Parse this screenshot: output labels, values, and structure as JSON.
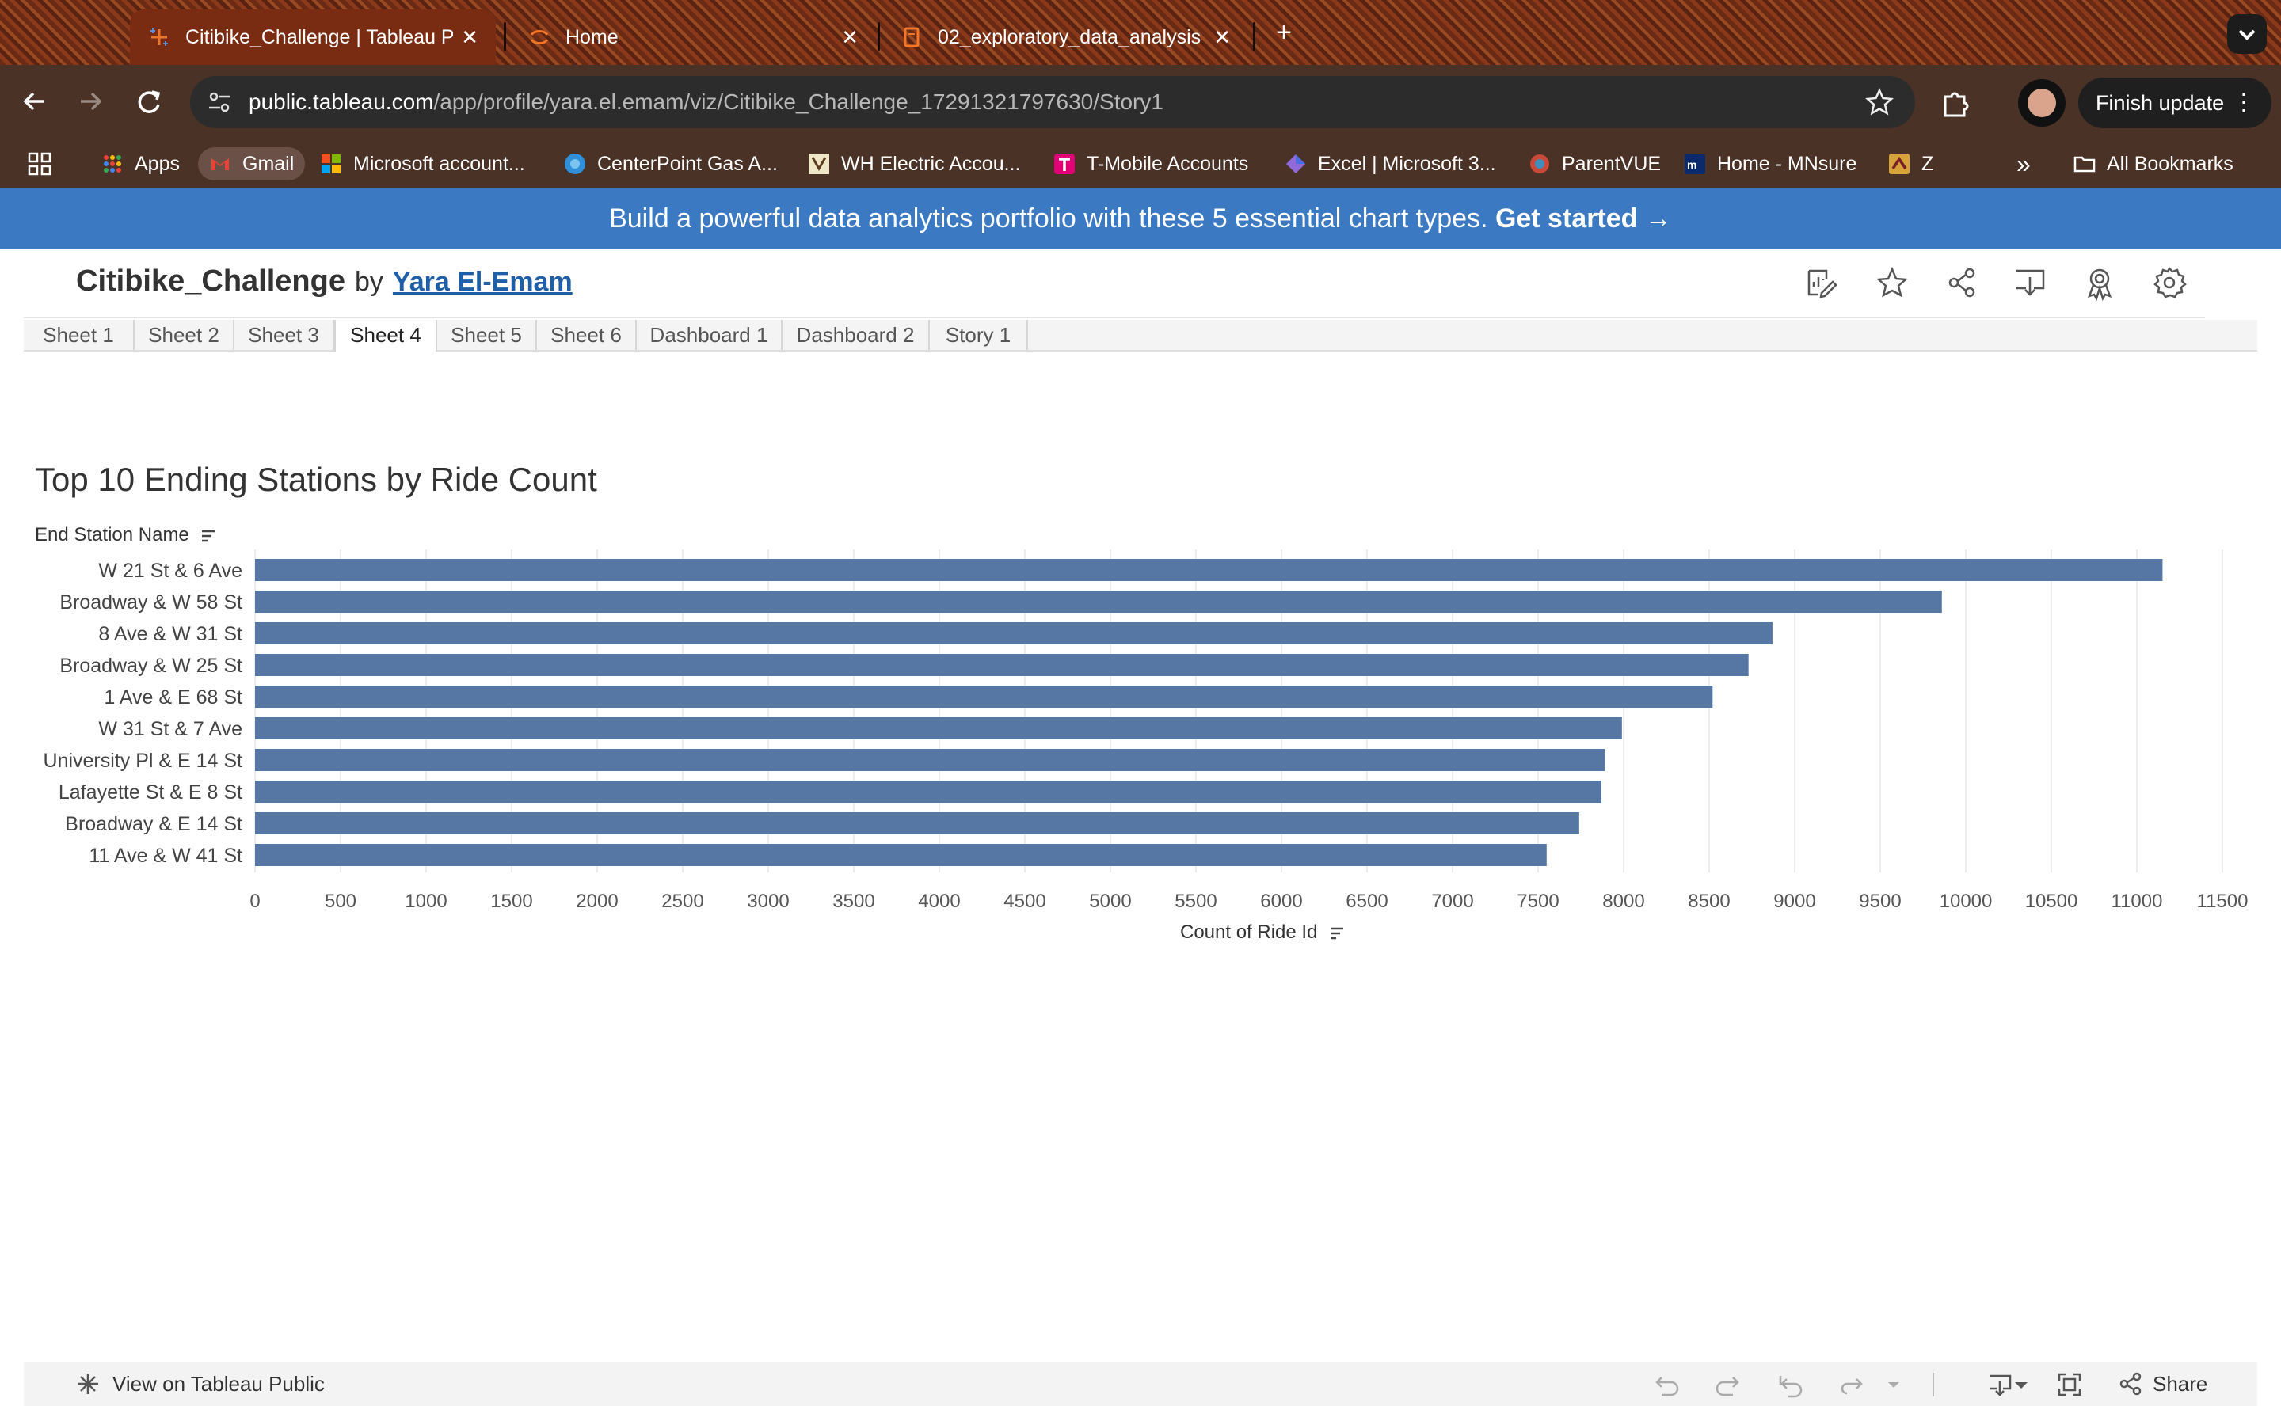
{
  "browser": {
    "tabs": [
      {
        "title": "Citibike_Challenge | Tableau P",
        "active": true,
        "favicon": "tableau-icon"
      },
      {
        "title": "Home",
        "active": false,
        "favicon": "jupyter-icon"
      },
      {
        "title": "02_exploratory_data_analysis",
        "active": false,
        "favicon": "notebook-icon"
      }
    ],
    "new_tab_symbol": "+",
    "url_domain": "public.tableau.com",
    "url_path": "/app/profile/yara.el.emam/viz/Citibike_Challenge_17291321797630/Story1",
    "finish_update_label": "Finish update",
    "bookmarks": [
      {
        "label": "Apps",
        "icon": "apps-grid-icon"
      },
      {
        "label": "Gmail",
        "icon": "gmail-icon"
      },
      {
        "label": "Microsoft account...",
        "icon": "microsoft-icon"
      },
      {
        "label": "CenterPoint Gas A...",
        "icon": "centerpoint-icon"
      },
      {
        "label": "WH Electric Accou...",
        "icon": "wh-electric-icon"
      },
      {
        "label": "T-Mobile Accounts",
        "icon": "tmobile-icon"
      },
      {
        "label": "Excel | Microsoft 3...",
        "icon": "excel-icon"
      },
      {
        "label": "ParentVUE",
        "icon": "parentvue-icon"
      },
      {
        "label": "Home - MNsure",
        "icon": "mnsure-icon"
      },
      {
        "label": "Z",
        "icon": "z-icon"
      }
    ],
    "more_bookmarks_symbol": "»",
    "all_bookmarks_label": "All Bookmarks"
  },
  "promo": {
    "text": "Build a powerful data analytics portfolio with these 5 essential chart types. ",
    "cta": "Get started →"
  },
  "viz": {
    "title": "Citibike_Challenge",
    "by": "by",
    "author": "Yara El-Emam",
    "sheet_tabs": [
      "Sheet 1",
      "Sheet 2",
      "Sheet 3",
      "Sheet 4",
      "Sheet 5",
      "Sheet 6",
      "Dashboard 1",
      "Dashboard 2",
      "Story 1"
    ],
    "active_sheet": "Sheet 4"
  },
  "chart_data": {
    "type": "bar",
    "orientation": "horizontal",
    "title": "Top 10 Ending Stations by Ride Count",
    "ylabel": "End Station Name",
    "xlabel": "Count of Ride Id",
    "categories": [
      "W 21 St & 6 Ave",
      "Broadway & W 58 St",
      "8 Ave & W 31 St",
      "Broadway & W 25 St",
      "1 Ave & E 68 St",
      "W 31 St & 7 Ave",
      "University Pl & E 14 St",
      "Lafayette St & E 8 St",
      "Broadway & E 14 St",
      "11 Ave & W 41 St"
    ],
    "values": [
      11150,
      9860,
      8870,
      8730,
      8520,
      7990,
      7890,
      7870,
      7740,
      7550
    ],
    "xlim": [
      0,
      11500
    ],
    "xticks": [
      0,
      500,
      1000,
      1500,
      2000,
      2500,
      3000,
      3500,
      4000,
      4500,
      5000,
      5500,
      6000,
      6500,
      7000,
      7500,
      8000,
      8500,
      9000,
      9500,
      10000,
      10500,
      11000,
      11500
    ],
    "bar_color": "#5677a4",
    "grid": "vertical"
  },
  "footer": {
    "view_on_public": "View on Tableau Public",
    "share": "Share"
  }
}
